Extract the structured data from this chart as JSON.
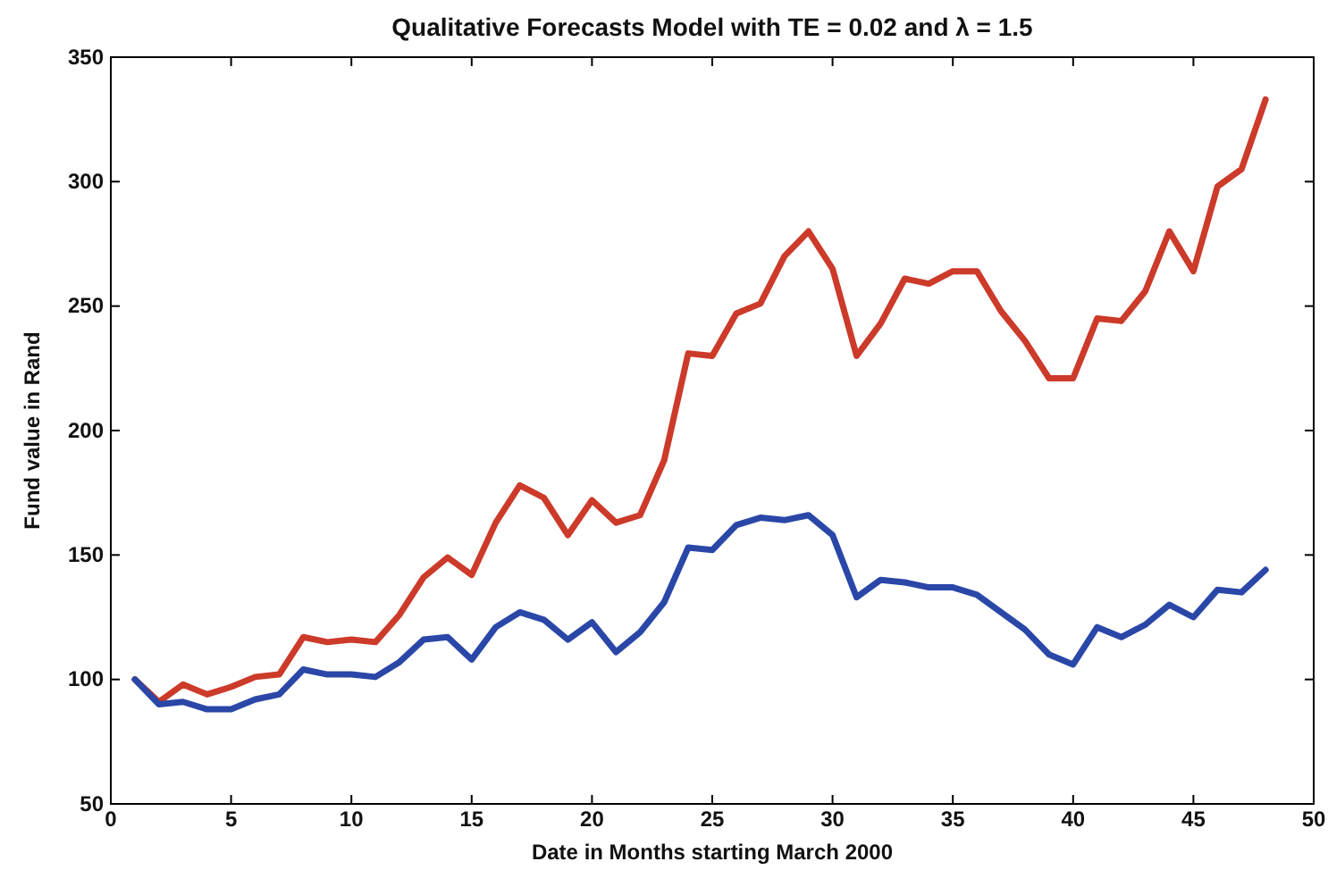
{
  "chart_data": {
    "type": "line",
    "title": "Qualitative Forecasts Model with TE = 0.02 and λ = 1.5",
    "xlabel": "Date in Months starting March 2000",
    "ylabel": "Fund value in Rand",
    "x": [
      1,
      2,
      3,
      4,
      5,
      6,
      7,
      8,
      9,
      10,
      11,
      12,
      13,
      14,
      15,
      16,
      17,
      18,
      19,
      20,
      21,
      22,
      23,
      24,
      25,
      26,
      27,
      28,
      29,
      30,
      31,
      32,
      33,
      34,
      35,
      36,
      37,
      38,
      39,
      40,
      41,
      42,
      43,
      44,
      45,
      46,
      47,
      48
    ],
    "series": [
      {
        "color": "#cc3a2a",
        "values": [
          100,
          91,
          98,
          94,
          97,
          101,
          102,
          117,
          115,
          116,
          115,
          126,
          141,
          149,
          142,
          163,
          178,
          173,
          158,
          172,
          163,
          166,
          188,
          231,
          230,
          247,
          251,
          270,
          280,
          265,
          230,
          243,
          261,
          259,
          264,
          264,
          248,
          236,
          221,
          221,
          245,
          244,
          256,
          280,
          264,
          298,
          305,
          333
        ]
      },
      {
        "color": "#2a47a8",
        "values": [
          100,
          90,
          91,
          88,
          88,
          92,
          94,
          104,
          102,
          102,
          101,
          107,
          116,
          117,
          108,
          121,
          127,
          124,
          116,
          123,
          111,
          119,
          131,
          153,
          152,
          162,
          165,
          164,
          166,
          158,
          133,
          140,
          139,
          137,
          137,
          134,
          127,
          120,
          110,
          106,
          121,
          117,
          122,
          130,
          125,
          136,
          135,
          144
        ]
      }
    ],
    "xlim": [
      0,
      50
    ],
    "xticks": [
      0,
      5,
      10,
      15,
      20,
      25,
      30,
      35,
      40,
      45,
      50
    ],
    "ylim": [
      50,
      350
    ],
    "yticks": [
      50,
      100,
      150,
      200,
      250,
      300,
      350
    ],
    "grid": false,
    "line_style": "solid",
    "marker": "none"
  }
}
